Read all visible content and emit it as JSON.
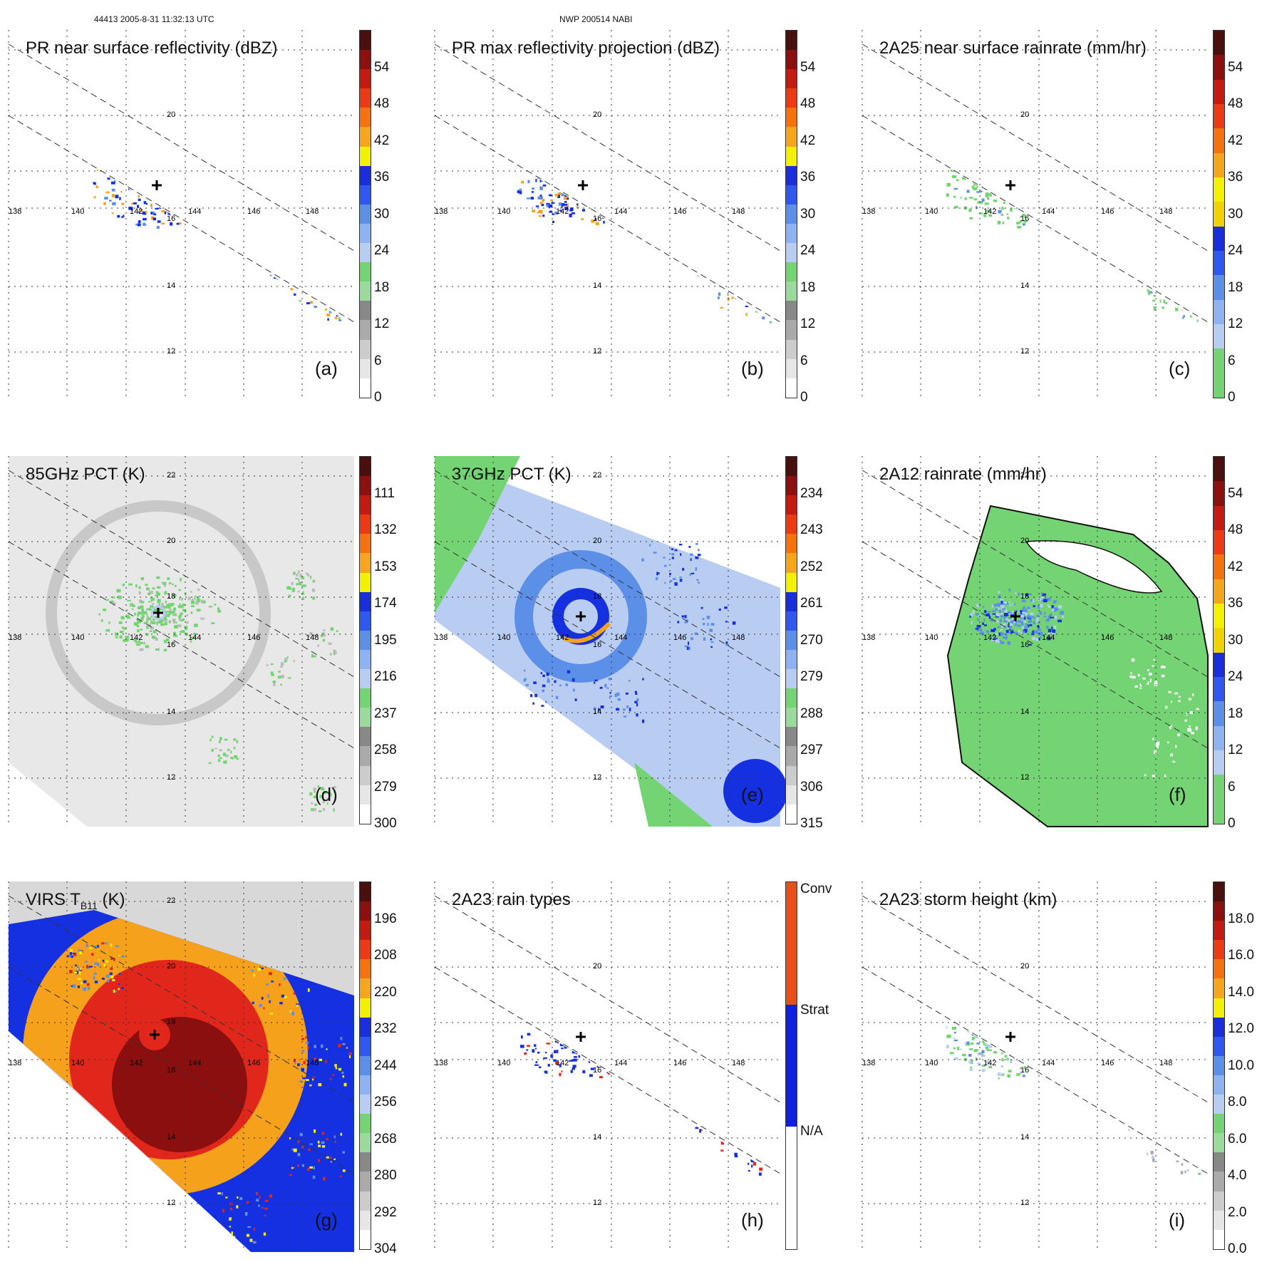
{
  "header": {
    "orbit_info": "44413 2005-8-31 11:32:13 UTC",
    "storm_info": "NWP 200514 NABI"
  },
  "map": {
    "lon_labels": [
      "138",
      "140",
      "142",
      "144",
      "146",
      "148"
    ],
    "lat_labels_swath": [
      "20",
      "16",
      "14",
      "12"
    ],
    "lat_labels_full": [
      "22",
      "20",
      "18",
      "16",
      "14",
      "12"
    ],
    "colors": {
      "bg": "#ffffff",
      "green": "#74d474",
      "lightblue": "#b9ccf2",
      "midblue": "#5c8fe8",
      "blue": "#1530e0",
      "yellow": "#f2f200",
      "orange": "#f5a11c",
      "red": "#e1271b",
      "darkred": "#8c0f0f",
      "maroon": "#4a1010",
      "lightgray": "#e4e4e4",
      "gray": "#aaaaaa"
    }
  },
  "panels": [
    {
      "id": "a",
      "title": "PR near surface reflectivity (dBZ)",
      "letter": "(a)",
      "scene": "swath",
      "colorbar": {
        "ticks": [
          "54",
          "48",
          "42",
          "36",
          "30",
          "24",
          "18",
          "12",
          "6",
          "0"
        ],
        "colors": [
          "#4a1010",
          "#8c1010",
          "#c41a10",
          "#ec3a14",
          "#f5720f",
          "#f5a61c",
          "#f2f200",
          "#1a2fdc",
          "#2f58f0",
          "#5c8fe8",
          "#8fb2f2",
          "#b9ccf2",
          "#74d474",
          "#9cd99c",
          "#888888",
          "#aaaaaa",
          "#cccccc",
          "#e6e6e6",
          "#ffffff"
        ]
      }
    },
    {
      "id": "b",
      "title": "PR max reflectivity projection (dBZ)",
      "letter": "(b)",
      "scene": "swath",
      "colorbar": {
        "ticks": [
          "54",
          "48",
          "42",
          "36",
          "30",
          "24",
          "18",
          "12",
          "6",
          "0"
        ],
        "colors": [
          "#4a1010",
          "#8c1010",
          "#c41a10",
          "#ec3a14",
          "#f5720f",
          "#f5a61c",
          "#f2f200",
          "#1a2fdc",
          "#2f58f0",
          "#5c8fe8",
          "#8fb2f2",
          "#b9ccf2",
          "#74d474",
          "#9cd99c",
          "#888888",
          "#aaaaaa",
          "#cccccc",
          "#e6e6e6",
          "#ffffff"
        ]
      }
    },
    {
      "id": "c",
      "title": "2A25 near surface rainrate (mm/hr)",
      "letter": "(c)",
      "scene": "swath",
      "colorbar": {
        "ticks": [
          "54",
          "48",
          "42",
          "36",
          "30",
          "24",
          "18",
          "12",
          "6",
          "0"
        ],
        "colors": [
          "#4a1010",
          "#8c1010",
          "#c41a10",
          "#ec3a14",
          "#f5720f",
          "#f5a61c",
          "#f2f200",
          "#f2d200",
          "#1a2fdc",
          "#2f58f0",
          "#5c8fe8",
          "#8fb2f2",
          "#b9ccf2",
          "#74d474",
          "#74d474"
        ]
      }
    },
    {
      "id": "d",
      "title": "85GHz PCT (K)",
      "letter": "(d)",
      "scene": "gray",
      "colorbar": {
        "ticks": [
          "111",
          "132",
          "153",
          "174",
          "195",
          "216",
          "237",
          "258",
          "279",
          "300"
        ],
        "colors": [
          "#4a1010",
          "#8c1010",
          "#c41a10",
          "#ec3a14",
          "#f5720f",
          "#f5a61c",
          "#f2f200",
          "#1a2fdc",
          "#2f58f0",
          "#5c8fe8",
          "#8fb2f2",
          "#b9ccf2",
          "#74d474",
          "#9cd99c",
          "#888888",
          "#aaaaaa",
          "#cccccc",
          "#e6e6e6",
          "#ffffff"
        ]
      }
    },
    {
      "id": "e",
      "title": "37GHz PCT (K)",
      "letter": "(e)",
      "scene": "blue",
      "colorbar": {
        "ticks": [
          "234",
          "243",
          "252",
          "261",
          "270",
          "279",
          "288",
          "297",
          "306",
          "315"
        ],
        "colors": [
          "#4a1010",
          "#8c1010",
          "#c41a10",
          "#ec3a14",
          "#f5720f",
          "#f5a61c",
          "#f2f200",
          "#1a2fdc",
          "#2f58f0",
          "#5c8fe8",
          "#8fb2f2",
          "#b9ccf2",
          "#74d474",
          "#9cd99c",
          "#888888",
          "#aaaaaa",
          "#cccccc",
          "#e6e6e6",
          "#ffffff"
        ]
      }
    },
    {
      "id": "f",
      "title": "2A12 rainrate (mm/hr)",
      "letter": "(f)",
      "scene": "rain",
      "colorbar": {
        "ticks": [
          "54",
          "48",
          "42",
          "36",
          "30",
          "24",
          "18",
          "12",
          "6",
          "0"
        ],
        "colors": [
          "#4a1010",
          "#8c1010",
          "#c41a10",
          "#ec3a14",
          "#f5720f",
          "#f5a61c",
          "#f2f200",
          "#f2d200",
          "#1a2fdc",
          "#2f58f0",
          "#5c8fe8",
          "#8fb2f2",
          "#b9ccf2",
          "#74d474",
          "#74d474"
        ]
      }
    },
    {
      "id": "g",
      "title": "VIRS T",
      "title_sub": "B11",
      "title_unit": " (K)",
      "letter": "(g)",
      "scene": "ir",
      "colorbar": {
        "ticks": [
          "196",
          "208",
          "220",
          "232",
          "244",
          "256",
          "268",
          "280",
          "292",
          "304"
        ],
        "colors": [
          "#4a1010",
          "#8c1010",
          "#c41a10",
          "#ec3a14",
          "#f5720f",
          "#f5a61c",
          "#f2f200",
          "#1a2fdc",
          "#2f58f0",
          "#5c8fe8",
          "#8fb2f2",
          "#b9ccf2",
          "#74d474",
          "#9cd99c",
          "#888888",
          "#aaaaaa",
          "#cccccc",
          "#e6e6e6",
          "#ffffff"
        ]
      }
    },
    {
      "id": "h",
      "title": "2A23 rain types",
      "letter": "(h)",
      "scene": "types",
      "colorbar": {
        "ticks": [
          "Conv",
          "Strat",
          "N/A"
        ],
        "colors": [
          "#e8501a",
          "#1020e0",
          "#ffffff"
        ]
      }
    },
    {
      "id": "i",
      "title": "2A23 storm height (km)",
      "letter": "(i)",
      "scene": "swath_light",
      "colorbar": {
        "ticks": [
          "18.0",
          "16.0",
          "14.0",
          "12.0",
          "10.0",
          "8.0",
          "6.0",
          "4.0",
          "2.0",
          "0.0"
        ],
        "colors": [
          "#4a1010",
          "#8c1010",
          "#c41a10",
          "#ec3a14",
          "#f5720f",
          "#f5a61c",
          "#f2f200",
          "#1a2fdc",
          "#2f58f0",
          "#5c8fe8",
          "#8fb2f2",
          "#b9ccf2",
          "#74d474",
          "#9cd99c",
          "#888888",
          "#aaaaaa",
          "#cccccc",
          "#e6e6e6",
          "#ffffff"
        ]
      }
    }
  ]
}
